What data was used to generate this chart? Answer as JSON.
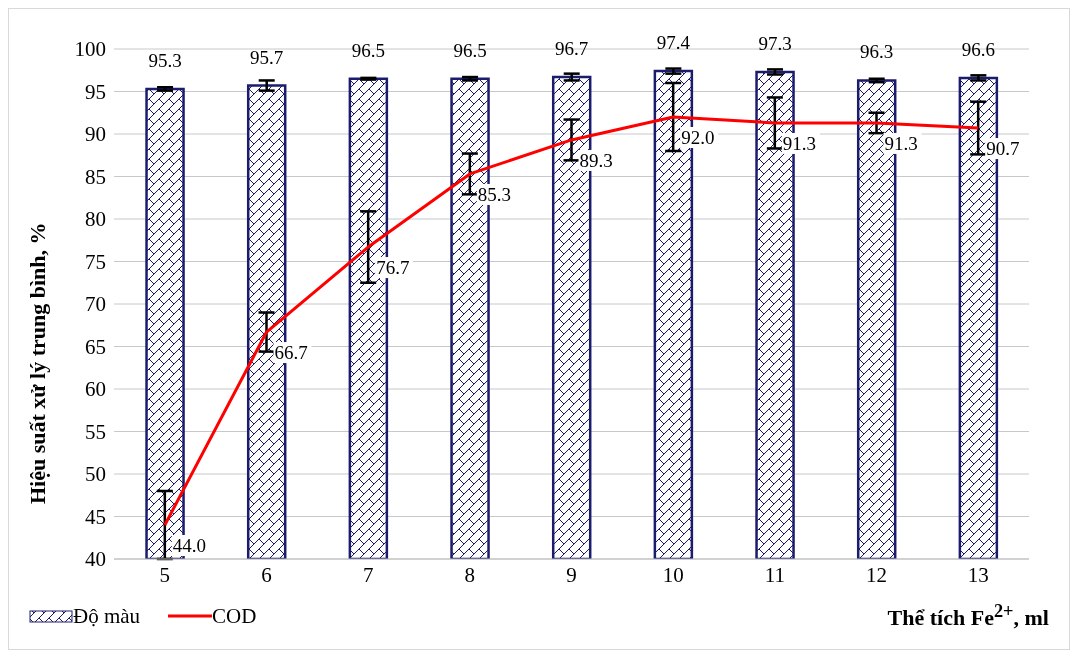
{
  "chart_data": {
    "type": "bar",
    "xlabel": "Thể tích Fe$^{2+}$, ml",
    "ylabel": "Hiệu suất xử lý trung bình, %",
    "categories": [
      "5",
      "6",
      "7",
      "8",
      "9",
      "10",
      "11",
      "12",
      "13"
    ],
    "series": [
      {
        "name": "Độ màu",
        "color": "#1c1c6e",
        "values": [
          95.3,
          95.7,
          96.5,
          96.5,
          96.7,
          97.4,
          97.3,
          96.3,
          96.6
        ],
        "errors": [
          0.2,
          0.6,
          0.1,
          0.2,
          0.4,
          0.3,
          0.3,
          0.2,
          0.3
        ]
      },
      {
        "name": "COD",
        "type": "line",
        "color": "#ff0000",
        "values": [
          44.0,
          66.7,
          76.7,
          85.3,
          89.3,
          92.0,
          91.3,
          91.3,
          90.7
        ],
        "errors": [
          4.0,
          2.3,
          4.2,
          2.4,
          2.4,
          4.0,
          3.0,
          1.2,
          3.1
        ],
        "value_labels": [
          "44.0",
          "66.7",
          "76.7",
          "85.3",
          "89.3",
          "92.0",
          "91.3",
          "91.3",
          "90.7"
        ]
      }
    ],
    "ylim": [
      40,
      100
    ],
    "yticks": [
      40,
      45,
      50,
      55,
      60,
      65,
      70,
      75,
      80,
      85,
      90,
      95,
      100
    ],
    "grid": "y",
    "legend": "bottom left",
    "data_labels": true,
    "marker": "none",
    "line_style": "solid"
  }
}
